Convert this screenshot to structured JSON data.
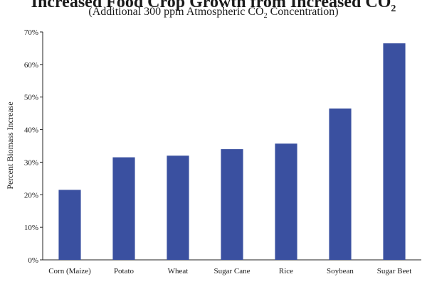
{
  "chart_data": {
    "type": "bar",
    "title_main": "Increased Food Crop Growth from Increased CO",
    "title_sub": "2",
    "subtitle_pre": "(Additional 300 ppm Atmospheric CO",
    "subtitle_sub": "2",
    "subtitle_post": " Concentration)",
    "ylabel": "Percent Biomass Increase",
    "xlabel": "",
    "categories": [
      "Corn (Maize)",
      "Potato",
      "Wheat",
      "Sugar Cane",
      "Rice",
      "Soybean",
      "Sugar Beet"
    ],
    "values": [
      21.5,
      31.5,
      32,
      34,
      35.7,
      46.5,
      66.5
    ],
    "ylim": [
      0,
      70
    ],
    "yticks": [
      "0%",
      "10%",
      "20%",
      "30%",
      "40%",
      "50%",
      "60%",
      "70%"
    ],
    "bar_color": "#3a50a0",
    "grid": false,
    "legend": "none"
  }
}
